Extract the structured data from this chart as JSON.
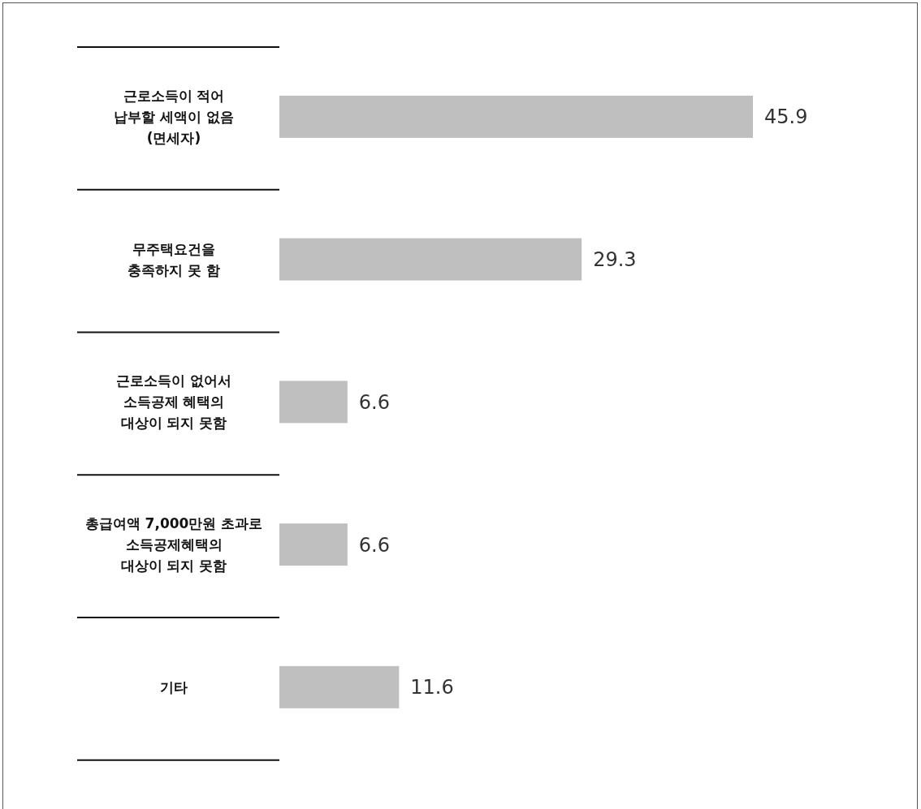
{
  "chart_data": {
    "type": "bar",
    "orientation": "horizontal",
    "categories": [
      "근로소득이 적어\n납부할 세액이 없음\n(면세자)",
      "무주택요건을\n충족하지 못 함",
      "근로소득이 없어서\n소득공제 혜택의\n대상이 되지 못함",
      "총급여액 7,000만원 초과로\n소득공제혜택의\n대상이 되지 못함",
      "기타"
    ],
    "values": [
      45.9,
      29.3,
      6.6,
      6.6,
      11.6
    ],
    "color": "#bfbfbf",
    "data_labels": true
  }
}
